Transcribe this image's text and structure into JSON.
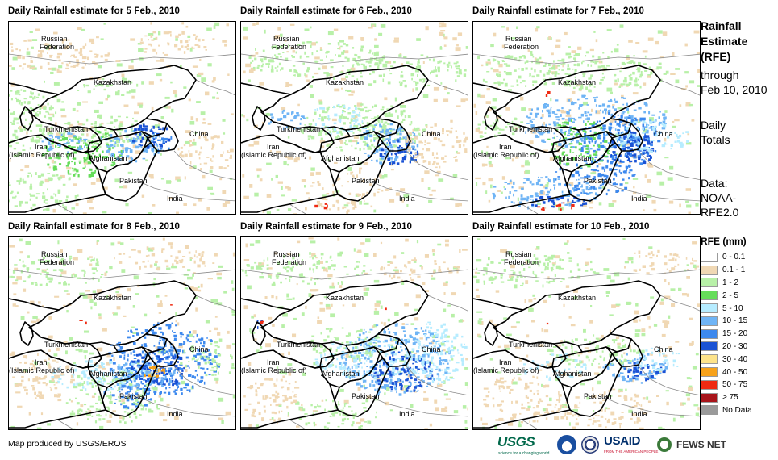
{
  "panels": [
    {
      "title": "Daily Rainfall estimate for 5 Feb., 2010"
    },
    {
      "title": "Daily Rainfall estimate for 6 Feb., 2010"
    },
    {
      "title": "Daily Rainfall estimate for 7 Feb., 2010"
    },
    {
      "title": "Daily Rainfall estimate for 8 Feb., 2010"
    },
    {
      "title": "Daily Rainfall estimate for 9 Feb., 2010"
    },
    {
      "title": "Daily Rainfall estimate for 10 Feb., 2010"
    }
  ],
  "map_labels": {
    "russia_1": "Russian",
    "russia_2": "Federation",
    "kazakhstan": "Kazakhstan",
    "turkmenistan": "Turkmenistan",
    "iran_1": "Iran",
    "iran_2": "(Islamic Republic of)",
    "afghanistan": "Afghanistan",
    "pakistan": "Pakistan",
    "china": "China",
    "india": "India"
  },
  "side": {
    "title_lines": [
      "Rainfall",
      "Estimate",
      "(RFE)"
    ],
    "through_lines": [
      "through",
      "Feb 10, 2010"
    ],
    "daily_lines": [
      "Daily",
      "Totals"
    ],
    "data_lines": [
      "Data:",
      "NOAA-",
      "RFE2.0"
    ]
  },
  "legend": {
    "title": "RFE (mm)",
    "items": [
      {
        "label": "0 - 0.1",
        "color": "#ffffff"
      },
      {
        "label": "0.1 - 1",
        "color": "#f0d8b4"
      },
      {
        "label": "1 - 2",
        "color": "#b8f0a8"
      },
      {
        "label": "2 - 5",
        "color": "#66dd5a"
      },
      {
        "label": "5 - 10",
        "color": "#b6ecff"
      },
      {
        "label": "10 - 15",
        "color": "#6fb4f5"
      },
      {
        "label": "15 - 20",
        "color": "#3d89ee"
      },
      {
        "label": "20 - 30",
        "color": "#1a52d4"
      },
      {
        "label": "30 - 40",
        "color": "#fde38a"
      },
      {
        "label": "40 - 50",
        "color": "#f7a21b"
      },
      {
        "label": "50 - 75",
        "color": "#ef2a12"
      },
      {
        "label": "> 75",
        "color": "#a8141a"
      },
      {
        "label": "No Data",
        "color": "#9a9a9a"
      }
    ]
  },
  "credit": "Map produced by USGS/EROS",
  "logos": {
    "usgs": "USGS",
    "usgs_tagline": "science for a changing world",
    "usaid": "USAID",
    "usaid_tagline": "FROM THE AMERICAN PEOPLE",
    "fewsnet": "FEWS NET"
  }
}
